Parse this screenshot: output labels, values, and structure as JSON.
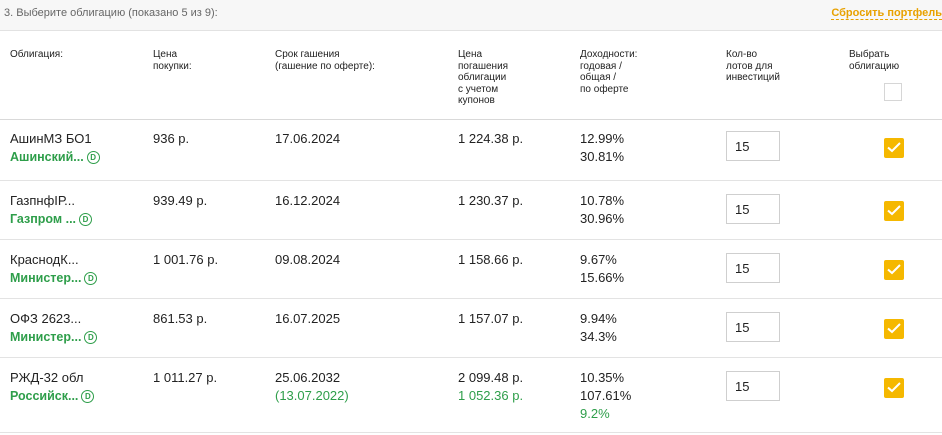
{
  "header": {
    "step_title": "3. Выберите облигацию (показано 5 из 9):",
    "reset_label": "Сбросить портфель"
  },
  "columns": {
    "bond": [
      "Облигация:"
    ],
    "price": [
      "Цена",
      "покупки:"
    ],
    "maturity": [
      "Срок гашения",
      "(гашение по оферте):"
    ],
    "redemption": [
      "Цена",
      "погашения",
      "облигации",
      "с учетом",
      "купонов"
    ],
    "yield": [
      "Доходности:",
      "годовая /",
      "общая /",
      "по оферте"
    ],
    "lots": [
      "Кол-во",
      "лотов для",
      "инвестиций"
    ],
    "select": [
      "Выбрать",
      "облигацию"
    ]
  },
  "icons": {
    "issuer_info": "D",
    "check": "check-icon"
  },
  "colors": {
    "accent": "#f5b800",
    "issuer": "#2e9e4a",
    "reset": "#e8a100"
  },
  "rows": [
    {
      "name": "АшинМЗ БО1",
      "issuer": "Ашинский...",
      "price": "936 р.",
      "maturity": "17.06.2024",
      "offer_date": "",
      "redemption": "1 224.38 р.",
      "redemption_offer": "",
      "yield_annual": "12.99%",
      "yield_total": "30.81%",
      "yield_offer": "",
      "lots": "15",
      "selected": true
    },
    {
      "name": "ГазпнфІР...",
      "issuer": "Газпром ...",
      "price": "939.49 р.",
      "maturity": "16.12.2024",
      "offer_date": "",
      "redemption": "1 230.37 р.",
      "redemption_offer": "",
      "yield_annual": "10.78%",
      "yield_total": "30.96%",
      "yield_offer": "",
      "lots": "15",
      "selected": true
    },
    {
      "name": "КраснодК...",
      "issuer": "Министер...",
      "price": "1 001.76 р.",
      "maturity": "09.08.2024",
      "offer_date": "",
      "redemption": "1 158.66 р.",
      "redemption_offer": "",
      "yield_annual": "9.67%",
      "yield_total": "15.66%",
      "yield_offer": "",
      "lots": "15",
      "selected": true
    },
    {
      "name": "ОФЗ 2623...",
      "issuer": "Министер...",
      "price": "861.53 р.",
      "maturity": "16.07.2025",
      "offer_date": "",
      "redemption": "1 157.07 р.",
      "redemption_offer": "",
      "yield_annual": "9.94%",
      "yield_total": "34.3%",
      "yield_offer": "",
      "lots": "15",
      "selected": true
    },
    {
      "name": "РЖД-32 обл",
      "issuer": "Российск...",
      "price": "1 011.27 р.",
      "maturity": "25.06.2032",
      "offer_date": "(13.07.2022)",
      "redemption": "2 099.48 р.",
      "redemption_offer": "1 052.36 р.",
      "yield_annual": "10.35%",
      "yield_total": "107.61%",
      "yield_offer": "9.2%",
      "lots": "15",
      "selected": true
    }
  ]
}
